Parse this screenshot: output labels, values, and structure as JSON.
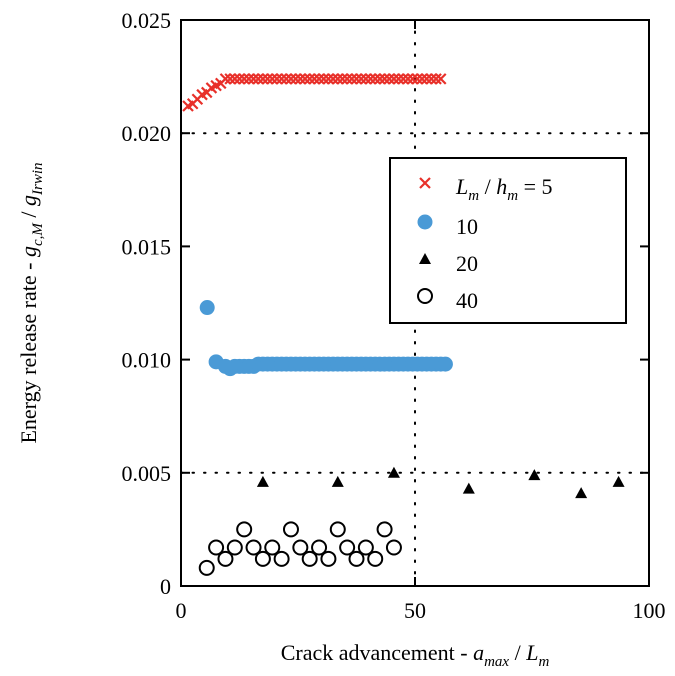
{
  "chart_data": {
    "type": "scatter",
    "xlabel": {
      "main": "Crack advancement - ",
      "var1": "a",
      "sub1": "max",
      "sep": " / ",
      "var2": "L",
      "sub2": "m"
    },
    "ylabel": {
      "main": "Energy release rate - ",
      "var1": "g",
      "sub1": "c,M",
      "sep": " / ",
      "var2": "g",
      "sub2": "Irwin"
    },
    "xlim": [
      0,
      100
    ],
    "ylim": [
      0,
      0.025
    ],
    "x_ticks": [
      0,
      50,
      100
    ],
    "x_tick_labels": [
      "0",
      "50",
      "100"
    ],
    "y_ticks": [
      0,
      0.005,
      0.01,
      0.015,
      0.02,
      0.025
    ],
    "y_tick_labels": [
      "0",
      "0.005",
      "0.010",
      "0.015",
      "0.020",
      "0.025"
    ],
    "grid": {
      "x": [
        50
      ],
      "y": [
        0.005,
        0.02
      ]
    },
    "legend_position": "right",
    "legend": {
      "first": {
        "var1": "L",
        "sub1": "m",
        "sep": " / ",
        "var2": "h",
        "sub2": "m",
        "tail": " = 5"
      },
      "labels": [
        "10",
        "20",
        "40"
      ]
    },
    "series": [
      {
        "marker": "x",
        "color": "#e8302a",
        "x": [
          1.5,
          2.5,
          3.5,
          4.5,
          5.5,
          6.5,
          7.5,
          8.5,
          9.5,
          10.5,
          11.5,
          12.5,
          13.5,
          14.5,
          15.5,
          16.5,
          17.5,
          18.5,
          19.5,
          20.5,
          21.5,
          22.5,
          23.5,
          24.5,
          25.5,
          26.5,
          27.5,
          28.5,
          29.5,
          30.5,
          31.5,
          32.5,
          33.5,
          34.5,
          35.5,
          36.5,
          37.5,
          38.5,
          39.5,
          40.5,
          41.5,
          42.5,
          43.5,
          44.5,
          45.5,
          46.5,
          47.5,
          48.5,
          49.5,
          50.5,
          51.5,
          52.5,
          53.5,
          54.5,
          55.5
        ],
        "y": [
          0.0212,
          0.0213,
          0.0215,
          0.0217,
          0.0218,
          0.022,
          0.0221,
          0.0222,
          0.0224,
          0.0224,
          0.0224,
          0.0224,
          0.0224,
          0.0224,
          0.0224,
          0.0224,
          0.0224,
          0.0224,
          0.0224,
          0.0224,
          0.0224,
          0.0224,
          0.0224,
          0.0224,
          0.0224,
          0.0224,
          0.0224,
          0.0224,
          0.0224,
          0.0224,
          0.0224,
          0.0224,
          0.0224,
          0.0224,
          0.0224,
          0.0224,
          0.0224,
          0.0224,
          0.0224,
          0.0224,
          0.0224,
          0.0224,
          0.0224,
          0.0224,
          0.0224,
          0.0224,
          0.0224,
          0.0224,
          0.0224,
          0.0224,
          0.0224,
          0.0224,
          0.0224,
          0.0224,
          0.0224
        ]
      },
      {
        "marker": "circle-filled",
        "color": "#4a9ad6",
        "x": [
          5.6,
          7.5,
          9.5,
          10.5,
          11.5,
          12.5,
          13.5,
          14.5,
          15.5,
          16.5,
          17.5,
          18.5,
          19.5,
          20.5,
          21.5,
          22.5,
          23.5,
          24.5,
          25.5,
          26.5,
          27.5,
          28.5,
          29.5,
          30.5,
          31.5,
          32.5,
          33.5,
          34.5,
          35.5,
          36.5,
          37.5,
          38.5,
          39.5,
          40.5,
          41.5,
          42.5,
          43.5,
          44.5,
          45.5,
          46.5,
          47.5,
          48.5,
          49.5,
          50.5,
          51.5,
          52.5,
          53.5,
          54.5,
          55.5,
          56.5
        ],
        "y": [
          0.0123,
          0.0099,
          0.0097,
          0.0096,
          0.0097,
          0.0097,
          0.0097,
          0.0097,
          0.0097,
          0.0098,
          0.0098,
          0.0098,
          0.0098,
          0.0098,
          0.0098,
          0.0098,
          0.0098,
          0.0098,
          0.0098,
          0.0098,
          0.0098,
          0.0098,
          0.0098,
          0.0098,
          0.0098,
          0.0098,
          0.0098,
          0.0098,
          0.0098,
          0.0098,
          0.0098,
          0.0098,
          0.0098,
          0.0098,
          0.0098,
          0.0098,
          0.0098,
          0.0098,
          0.0098,
          0.0098,
          0.0098,
          0.0098,
          0.0098,
          0.0098,
          0.0098,
          0.0098,
          0.0098,
          0.0098,
          0.0098,
          0.0098
        ]
      },
      {
        "marker": "triangle",
        "color": "#000000",
        "x": [
          17.5,
          33.5,
          45.5,
          61.5,
          75.5,
          85.5,
          93.5
        ],
        "y": [
          0.0046,
          0.0046,
          0.005,
          0.0043,
          0.0049,
          0.0041,
          0.0046
        ]
      },
      {
        "marker": "circle-open",
        "color": "#000000",
        "x": [
          5.5,
          7.5,
          9.5,
          11.5,
          13.5,
          15.5,
          17.5,
          19.5,
          21.5,
          23.5,
          25.5,
          27.5,
          29.5,
          31.5,
          33.5,
          35.5,
          37.5,
          39.5,
          41.5,
          43.5,
          45.5
        ],
        "y": [
          0.0008,
          0.0017,
          0.0012,
          0.0017,
          0.0025,
          0.0017,
          0.0012,
          0.0017,
          0.0012,
          0.0025,
          0.0017,
          0.0012,
          0.0017,
          0.0012,
          0.0025,
          0.0017,
          0.0012,
          0.0017,
          0.0012,
          0.0025,
          0.0017
        ]
      }
    ]
  }
}
